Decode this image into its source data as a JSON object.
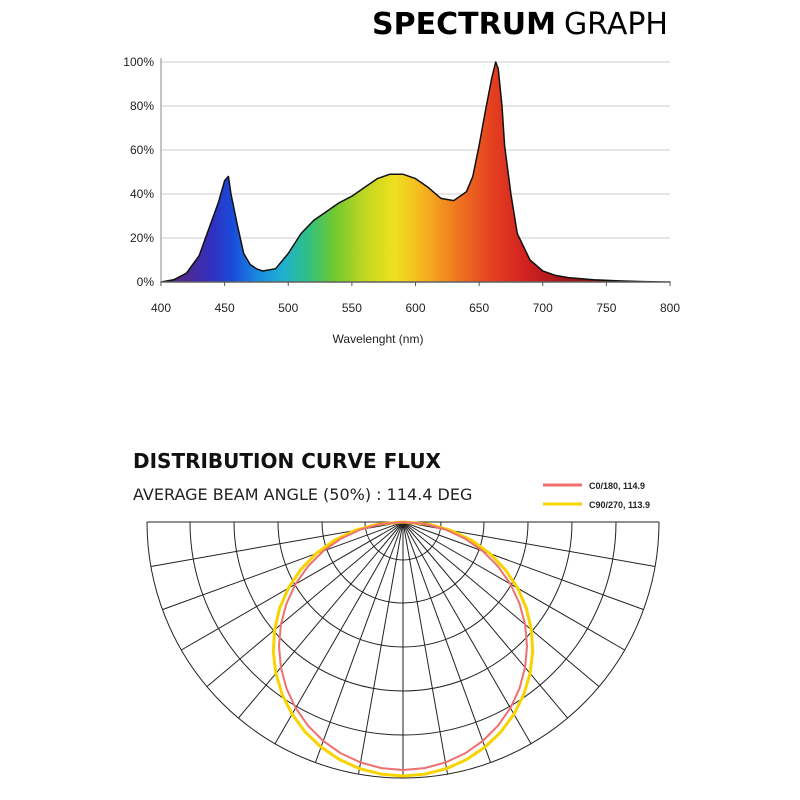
{
  "title": {
    "bold": "SPECTRUM",
    "light": "GRAPH"
  },
  "distribution": {
    "title": "DISTRIBUTION CURVE FLUX",
    "subtitle": "AVERAGE BEAM ANGLE  (50%) : 114.4 DEG"
  },
  "colors": {
    "curve_c0": "#f07070",
    "curve_c90": "#f7d400",
    "polar_grid": "#222222",
    "chart_grid": "#cccccc"
  },
  "chart_data": [
    {
      "type": "area",
      "xlabel": "Wavelenght (nm)",
      "ylabel": "",
      "xlim": [
        400,
        800
      ],
      "ylim": [
        0,
        100
      ],
      "x_ticks": [
        "400",
        "450",
        "500",
        "550",
        "600",
        "650",
        "700",
        "750",
        "800"
      ],
      "y_ticks": [
        "0%",
        "20%",
        "40%",
        "60%",
        "80%",
        "100%"
      ],
      "grid": "horizontal",
      "fill": "visible-spectrum gradient",
      "series": [
        {
          "x": [
            400,
            410,
            420,
            430,
            435,
            440,
            445,
            450,
            453,
            455,
            460,
            465,
            470,
            475,
            480,
            490,
            500,
            510,
            520,
            530,
            540,
            550,
            560,
            570,
            580,
            590,
            600,
            610,
            620,
            630,
            640,
            645,
            650,
            655,
            660,
            663,
            665,
            668,
            670,
            675,
            680,
            690,
            700,
            710,
            720,
            740,
            760,
            780,
            800
          ],
          "y": [
            0,
            1,
            4,
            12,
            20,
            28,
            36,
            46,
            48,
            40,
            26,
            13,
            8,
            6,
            5,
            6,
            13,
            22,
            28,
            32,
            36,
            39,
            43,
            47,
            49,
            49,
            47,
            43,
            38,
            37,
            41,
            48,
            62,
            78,
            93,
            100,
            97,
            80,
            62,
            40,
            22,
            10,
            5,
            3,
            2,
            1,
            0.5,
            0.2,
            0
          ]
        }
      ]
    },
    {
      "type": "polar",
      "angle_lines_deg": 10,
      "series": [
        {
          "name": "C0/180, 114.9",
          "color": "#f07070"
        },
        {
          "name": "C90/270, 113.9",
          "color": "#f7d400"
        }
      ]
    }
  ]
}
